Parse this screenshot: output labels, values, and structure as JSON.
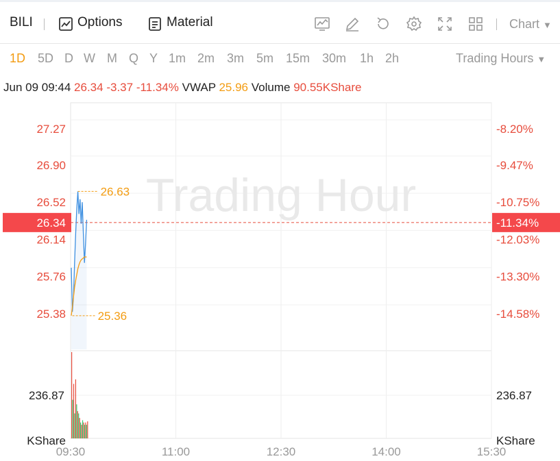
{
  "toolbar": {
    "symbol": "BILI",
    "options_label": "Options",
    "material_label": "Material",
    "icons": [
      "chart-line-icon",
      "pencil-icon",
      "refresh-icon",
      "gear-icon",
      "fullscreen-icon",
      "grid-icon"
    ],
    "chart_label": "Chart"
  },
  "periods": [
    "1D",
    "5D",
    "D",
    "W",
    "M",
    "Q",
    "Y",
    "1m",
    "2m",
    "3m",
    "5m",
    "15m",
    "30m",
    "1h",
    "2h"
  ],
  "active_period": "1D",
  "trading_hours_label": "Trading Hours",
  "info": {
    "datetime": "Jun 09 09:44",
    "price": "26.34",
    "change": "-3.37",
    "change_pct": "-11.34%",
    "vwap_label": "VWAP",
    "vwap": "25.96",
    "volume_label": "Volume",
    "volume": "90.55KShare"
  },
  "watermark": "Trading Hour",
  "colors": {
    "up": "#e74c3c",
    "down": "#2ecc71",
    "price_line": "#4a90d9",
    "vwap_line": "#f39c12"
  },
  "chart_data": {
    "type": "line",
    "ylim": [
      25.0,
      27.5
    ],
    "y_ticks": [
      "27.27",
      "26.90",
      "26.52",
      "26.14",
      "25.76",
      "25.38"
    ],
    "y_tick_values": [
      27.27,
      26.9,
      26.52,
      26.14,
      25.76,
      25.38
    ],
    "pct_ticks": [
      "-8.20%",
      "-9.47%",
      "-10.75%",
      "-12.03%",
      "-13.30%",
      "-14.58%"
    ],
    "x_ticks": [
      "09:30",
      "11:00",
      "12:30",
      "14:00",
      "15:30"
    ],
    "x_tick_minutes": [
      0,
      90,
      180,
      270,
      360
    ],
    "current_price": "26.34",
    "current_pct": "-11.34%",
    "high_label": "26.63",
    "low_label": "25.36",
    "high": 26.63,
    "low": 25.36,
    "price_series": {
      "minutes": [
        0,
        1,
        2,
        3,
        4,
        5,
        6,
        7,
        8,
        9,
        10,
        11,
        12,
        13,
        14
      ],
      "values": [
        25.85,
        25.4,
        25.55,
        25.9,
        26.2,
        26.45,
        26.63,
        26.4,
        26.55,
        26.3,
        26.52,
        26.2,
        25.9,
        26.1,
        26.34
      ]
    },
    "vwap_series": {
      "minutes": [
        0,
        1,
        2,
        3,
        4,
        5,
        6,
        7,
        8,
        9,
        10,
        11,
        12,
        13,
        14
      ],
      "values": [
        25.36,
        25.45,
        25.55,
        25.65,
        25.72,
        25.78,
        25.84,
        25.88,
        25.91,
        25.93,
        25.94,
        25.95,
        25.96,
        25.96,
        25.96
      ]
    },
    "volume": {
      "max_label": "236.87",
      "unit_label": "KShare",
      "ymax": 380,
      "bars": [
        {
          "v": 380,
          "dir": "down"
        },
        {
          "v": 170,
          "dir": "up"
        },
        {
          "v": 240,
          "dir": "down"
        },
        {
          "v": 110,
          "dir": "up"
        },
        {
          "v": 260,
          "dir": "down"
        },
        {
          "v": 150,
          "dir": "up"
        },
        {
          "v": 120,
          "dir": "down"
        },
        {
          "v": 110,
          "dir": "up"
        },
        {
          "v": 90,
          "dir": "down"
        },
        {
          "v": 70,
          "dir": "up"
        },
        {
          "v": 60,
          "dir": "down"
        },
        {
          "v": 80,
          "dir": "up"
        },
        {
          "v": 70,
          "dir": "down"
        },
        {
          "v": 60,
          "dir": "up"
        },
        {
          "v": 70,
          "dir": "down"
        },
        {
          "v": 60,
          "dir": "up"
        },
        {
          "v": 75,
          "dir": "down"
        }
      ]
    }
  }
}
